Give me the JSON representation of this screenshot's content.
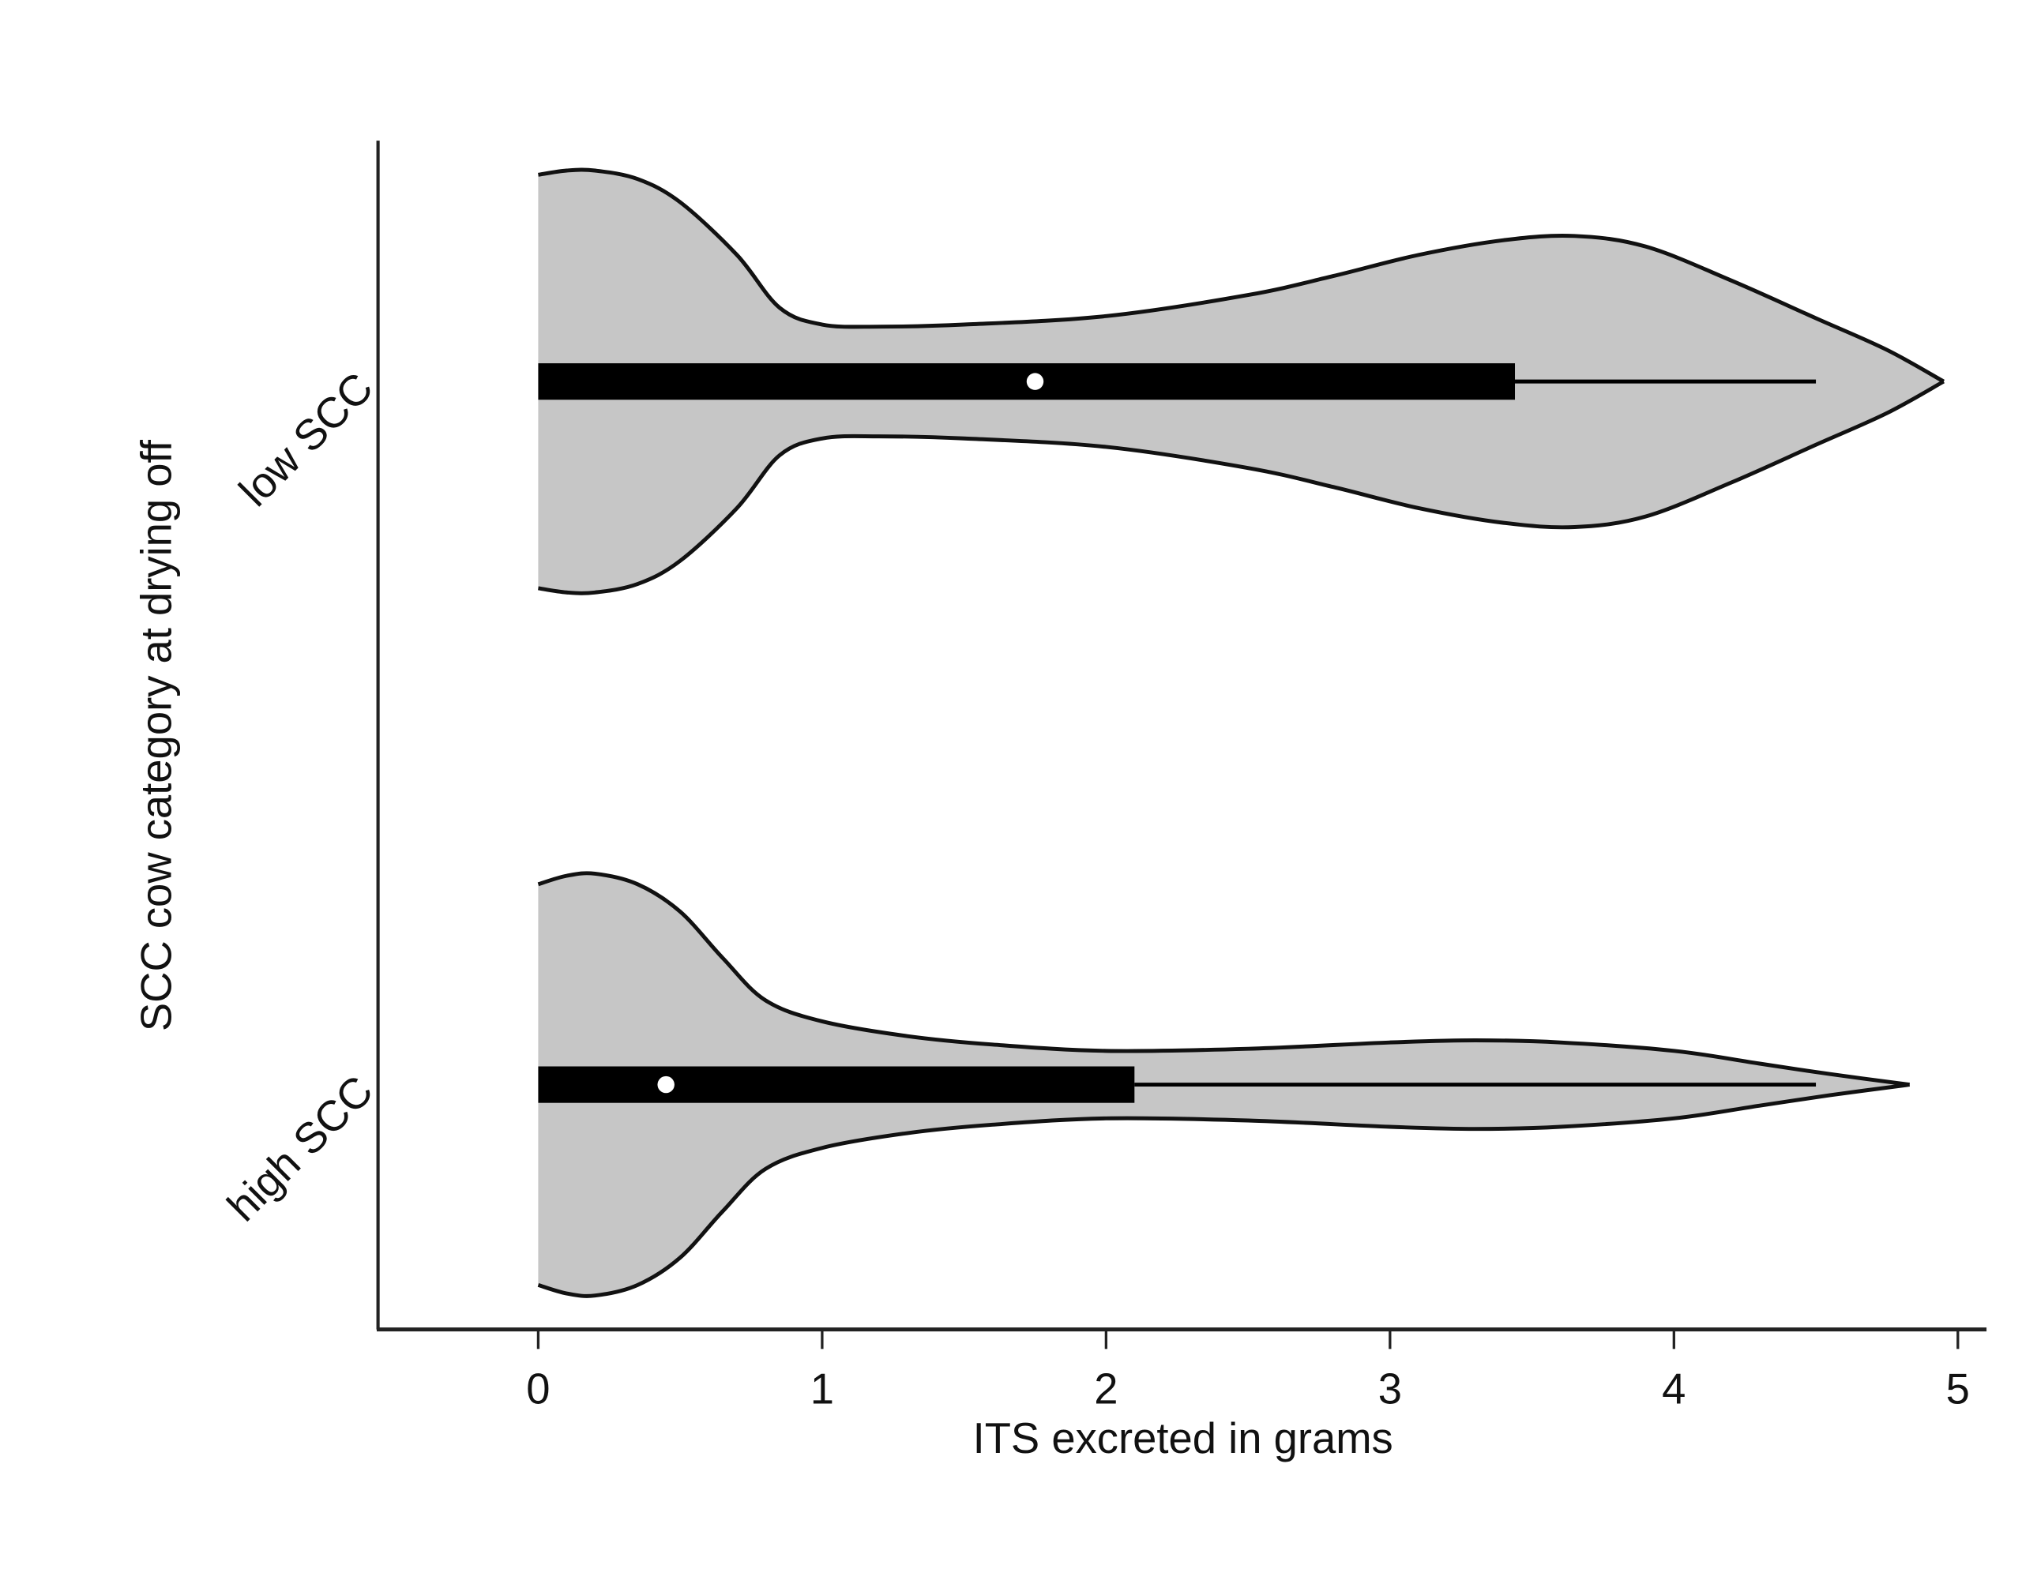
{
  "chart_data": {
    "type": "violin",
    "title": "",
    "xlabel": "ITS excreted in grams",
    "ylabel": "SCC cow category at drying off",
    "xlim": [
      -0.57,
      5.1
    ],
    "xticks": [
      0,
      1,
      2,
      3,
      4,
      5
    ],
    "xtick_labels": [
      "0",
      "1",
      "2",
      "3",
      "4",
      "5"
    ],
    "grid": false,
    "colors": {
      "violin_fill": "#c6c6c6",
      "outline": "#111111",
      "box": "#000000",
      "median": "#ffffff"
    },
    "categories": [
      "low SCC",
      "high SCC"
    ],
    "series": [
      {
        "name": "low SCC",
        "density_x": [
          0,
          0.1,
          0.2,
          0.35,
          0.5,
          0.7,
          0.85,
          1.0,
          1.2,
          1.5,
          2.0,
          2.5,
          2.8,
          3.1,
          3.4,
          3.65,
          3.9,
          4.2,
          4.5,
          4.75,
          4.95
        ],
        "density_width": [
          0.98,
          1.0,
          1.0,
          0.96,
          0.85,
          0.6,
          0.35,
          0.27,
          0.26,
          0.27,
          0.31,
          0.41,
          0.5,
          0.6,
          0.67,
          0.69,
          0.64,
          0.48,
          0.3,
          0.15,
          0
        ],
        "q1": 0,
        "median": 1.75,
        "q3": 3.44,
        "whisker_low": 0,
        "whisker_high": 4.5
      },
      {
        "name": "high SCC",
        "density_x": [
          0,
          0.1,
          0.2,
          0.35,
          0.5,
          0.65,
          0.8,
          1.0,
          1.3,
          1.6,
          2.0,
          2.5,
          3.0,
          3.3,
          3.6,
          4.0,
          4.3,
          4.55,
          4.83
        ],
        "density_width": [
          0.95,
          0.99,
          1.0,
          0.95,
          0.82,
          0.6,
          0.4,
          0.3,
          0.23,
          0.19,
          0.16,
          0.17,
          0.2,
          0.21,
          0.2,
          0.16,
          0.1,
          0.05,
          0
        ],
        "q1": 0,
        "median": 0.45,
        "q3": 2.1,
        "whisker_low": 0,
        "whisker_high": 4.5
      }
    ]
  }
}
